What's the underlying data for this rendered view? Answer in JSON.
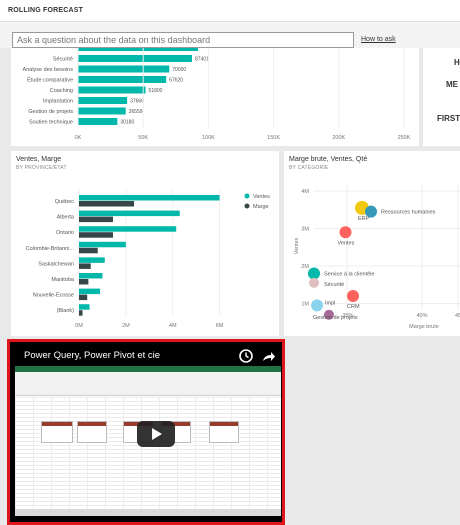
{
  "header": {
    "title": "ROLLING FORECAST"
  },
  "qna": {
    "placeholder": "Ask a question about the data on this dashboard",
    "how_to_ask": "How to ask"
  },
  "bar_tile": {
    "chart_data": {
      "type": "bar",
      "categories": [
        "Sécurité",
        "Analyse des besoins",
        "Étude comparative",
        "Coaching",
        "Implantation",
        "Gestion de projets",
        "Soutien technique"
      ],
      "values": [
        87401,
        70000,
        67620,
        51800,
        37660,
        36559,
        30180
      ],
      "value_labels": [
        "87401",
        "70000",
        "67620",
        "51800",
        "37660",
        "36559",
        "30180"
      ],
      "xticks": [
        "0K",
        "50K",
        "100K",
        "150K",
        "200K",
        "250K"
      ],
      "xlim": [
        0,
        250000
      ],
      "color": "#01b8aa"
    }
  },
  "card_tile": {
    "lines": [
      "H",
      "ME",
      "FIRST"
    ]
  },
  "ventes_tile": {
    "title": "Ventes, Marge",
    "subtitle": "BY PROVINCE/ÉTAT",
    "chart_data": {
      "type": "bar",
      "categories": [
        "Québec",
        "Alberta",
        "Ontario",
        "Colombie-Britanni...",
        "Saskatchewan",
        "Manitoba",
        "Nouvelle-Écosse",
        "(Blank)"
      ],
      "series": [
        {
          "name": "Ventes",
          "color": "#01b8aa",
          "values": [
            6000000,
            4300000,
            4150000,
            2000000,
            1100000,
            1000000,
            900000,
            450000
          ]
        },
        {
          "name": "Marge",
          "color": "#374649",
          "values": [
            2350000,
            1450000,
            1450000,
            800000,
            500000,
            400000,
            350000,
            150000
          ]
        }
      ],
      "xticks": [
        "0M",
        "2M",
        "4M",
        "6M"
      ],
      "xlim": [
        0,
        7000000
      ],
      "legend": "top-right"
    }
  },
  "scatter_tile": {
    "title": "Marge brute, Ventes, Qté",
    "subtitle": "BY CATÉGORIE",
    "chart_data": {
      "type": "scatter",
      "xlabel": "Marge brute",
      "ylabel": "Ventes",
      "yticks": [
        "4M",
        "3M",
        "2M",
        "1M"
      ],
      "xticks": [
        "-35%",
        "40%",
        "45"
      ],
      "points": [
        {
          "label": "ERP",
          "x": -0.3,
          "y": 3.55,
          "color": "#f2c80f",
          "r": 7
        },
        {
          "label": "Ressources humaines",
          "x": -0.27,
          "y": 3.45,
          "color": "#3599b8",
          "r": 6
        },
        {
          "label": "Ventes",
          "x": -0.355,
          "y": 2.9,
          "color": "#fd625e",
          "r": 6
        },
        {
          "label": "Service à la clientèle",
          "x": -0.46,
          "y": 1.8,
          "color": "#01b8aa",
          "r": 6
        },
        {
          "label": "Sécurité",
          "x": -0.46,
          "y": 1.55,
          "color": "#dfbfbf",
          "r": 5
        },
        {
          "label": "CRM",
          "x": -0.33,
          "y": 1.2,
          "color": "#fd625e",
          "r": 6
        },
        {
          "label": "Impl",
          "x": -0.45,
          "y": 0.95,
          "color": "#8ad4eb",
          "r": 6
        },
        {
          "label": "Gestion de projets",
          "x": -0.41,
          "y": 0.7,
          "color": "#a66999",
          "r": 5
        }
      ]
    }
  },
  "video_tile": {
    "title": "Power Query, Power Pivot et cie"
  }
}
